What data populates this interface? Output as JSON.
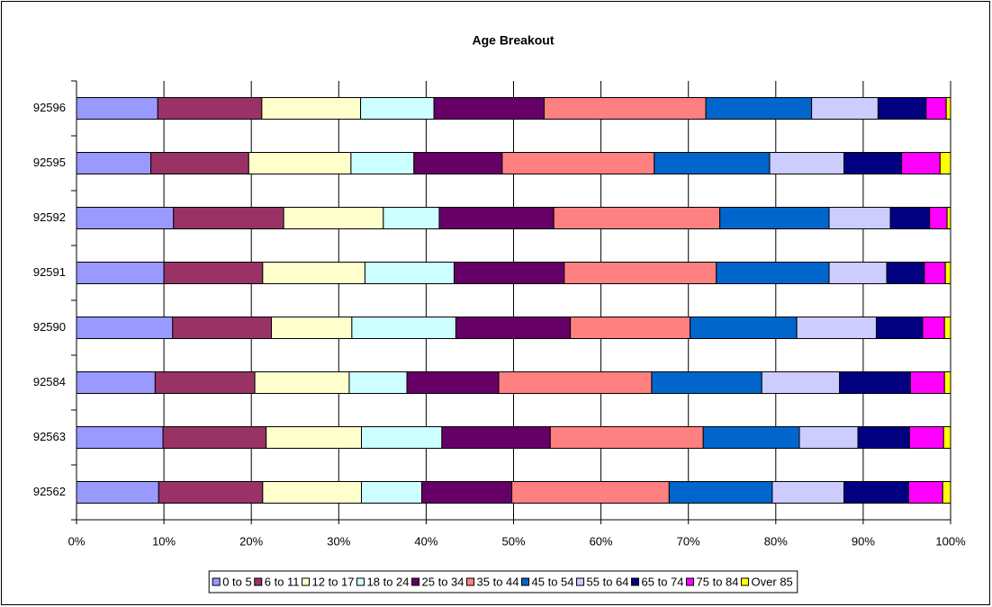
{
  "chart_data": {
    "type": "stacked_bar_horizontal",
    "title": "Age Breakout",
    "categories": [
      "92596",
      "92595",
      "92592",
      "92591",
      "92590",
      "92584",
      "92563",
      "92562"
    ],
    "series": [
      {
        "name": "0 to 5",
        "color": "#9999ff",
        "values": [
          9.3,
          8.5,
          11.1,
          10.0,
          11.0,
          9.0,
          9.9,
          9.4
        ]
      },
      {
        "name": "6 to 11",
        "color": "#993366",
        "values": [
          11.9,
          11.2,
          12.6,
          11.3,
          11.3,
          11.4,
          11.8,
          11.9
        ]
      },
      {
        "name": "12 to 17",
        "color": "#ffffcc",
        "values": [
          11.3,
          11.7,
          11.4,
          11.7,
          9.2,
          10.8,
          10.9,
          11.3
        ]
      },
      {
        "name": "18 to 24",
        "color": "#ccffff",
        "values": [
          8.4,
          7.2,
          6.4,
          10.2,
          11.9,
          6.6,
          9.2,
          6.9
        ]
      },
      {
        "name": "25 to 34",
        "color": "#660066",
        "values": [
          12.6,
          10.1,
          13.1,
          12.6,
          13.1,
          10.5,
          12.4,
          10.3
        ]
      },
      {
        "name": "35 to 44",
        "color": "#ff8080",
        "values": [
          18.5,
          17.4,
          19.0,
          17.4,
          13.7,
          17.5,
          17.5,
          18.0
        ]
      },
      {
        "name": "45 to 54",
        "color": "#0066cc",
        "values": [
          12.1,
          13.2,
          12.5,
          12.9,
          12.2,
          12.6,
          11.0,
          11.8
        ]
      },
      {
        "name": "55 to 64",
        "color": "#ccccff",
        "values": [
          7.6,
          8.5,
          7.0,
          6.6,
          9.1,
          8.9,
          6.7,
          8.2
        ]
      },
      {
        "name": "65 to 74",
        "color": "#000080",
        "values": [
          5.5,
          6.6,
          4.5,
          4.3,
          5.3,
          8.1,
          5.9,
          7.4
        ]
      },
      {
        "name": "75 to 84",
        "color": "#ff00ff",
        "values": [
          2.3,
          4.4,
          2.0,
          2.4,
          2.5,
          3.9,
          3.9,
          3.9
        ]
      },
      {
        "name": "Over 85",
        "color": "#ffff00",
        "values": [
          0.5,
          1.2,
          0.4,
          0.6,
          0.7,
          0.7,
          0.8,
          0.9
        ]
      }
    ],
    "xlim": [
      0,
      100
    ],
    "xticks": [
      {
        "value": 0,
        "label": "0%"
      },
      {
        "value": 10,
        "label": "10%"
      },
      {
        "value": 20,
        "label": "20%"
      },
      {
        "value": 30,
        "label": "30%"
      },
      {
        "value": 40,
        "label": "40%"
      },
      {
        "value": 50,
        "label": "50%"
      },
      {
        "value": 60,
        "label": "60%"
      },
      {
        "value": 70,
        "label": "70%"
      },
      {
        "value": 80,
        "label": "80%"
      },
      {
        "value": 90,
        "label": "90%"
      },
      {
        "value": 100,
        "label": "100%"
      }
    ],
    "grid": true,
    "legend": "bottom"
  }
}
